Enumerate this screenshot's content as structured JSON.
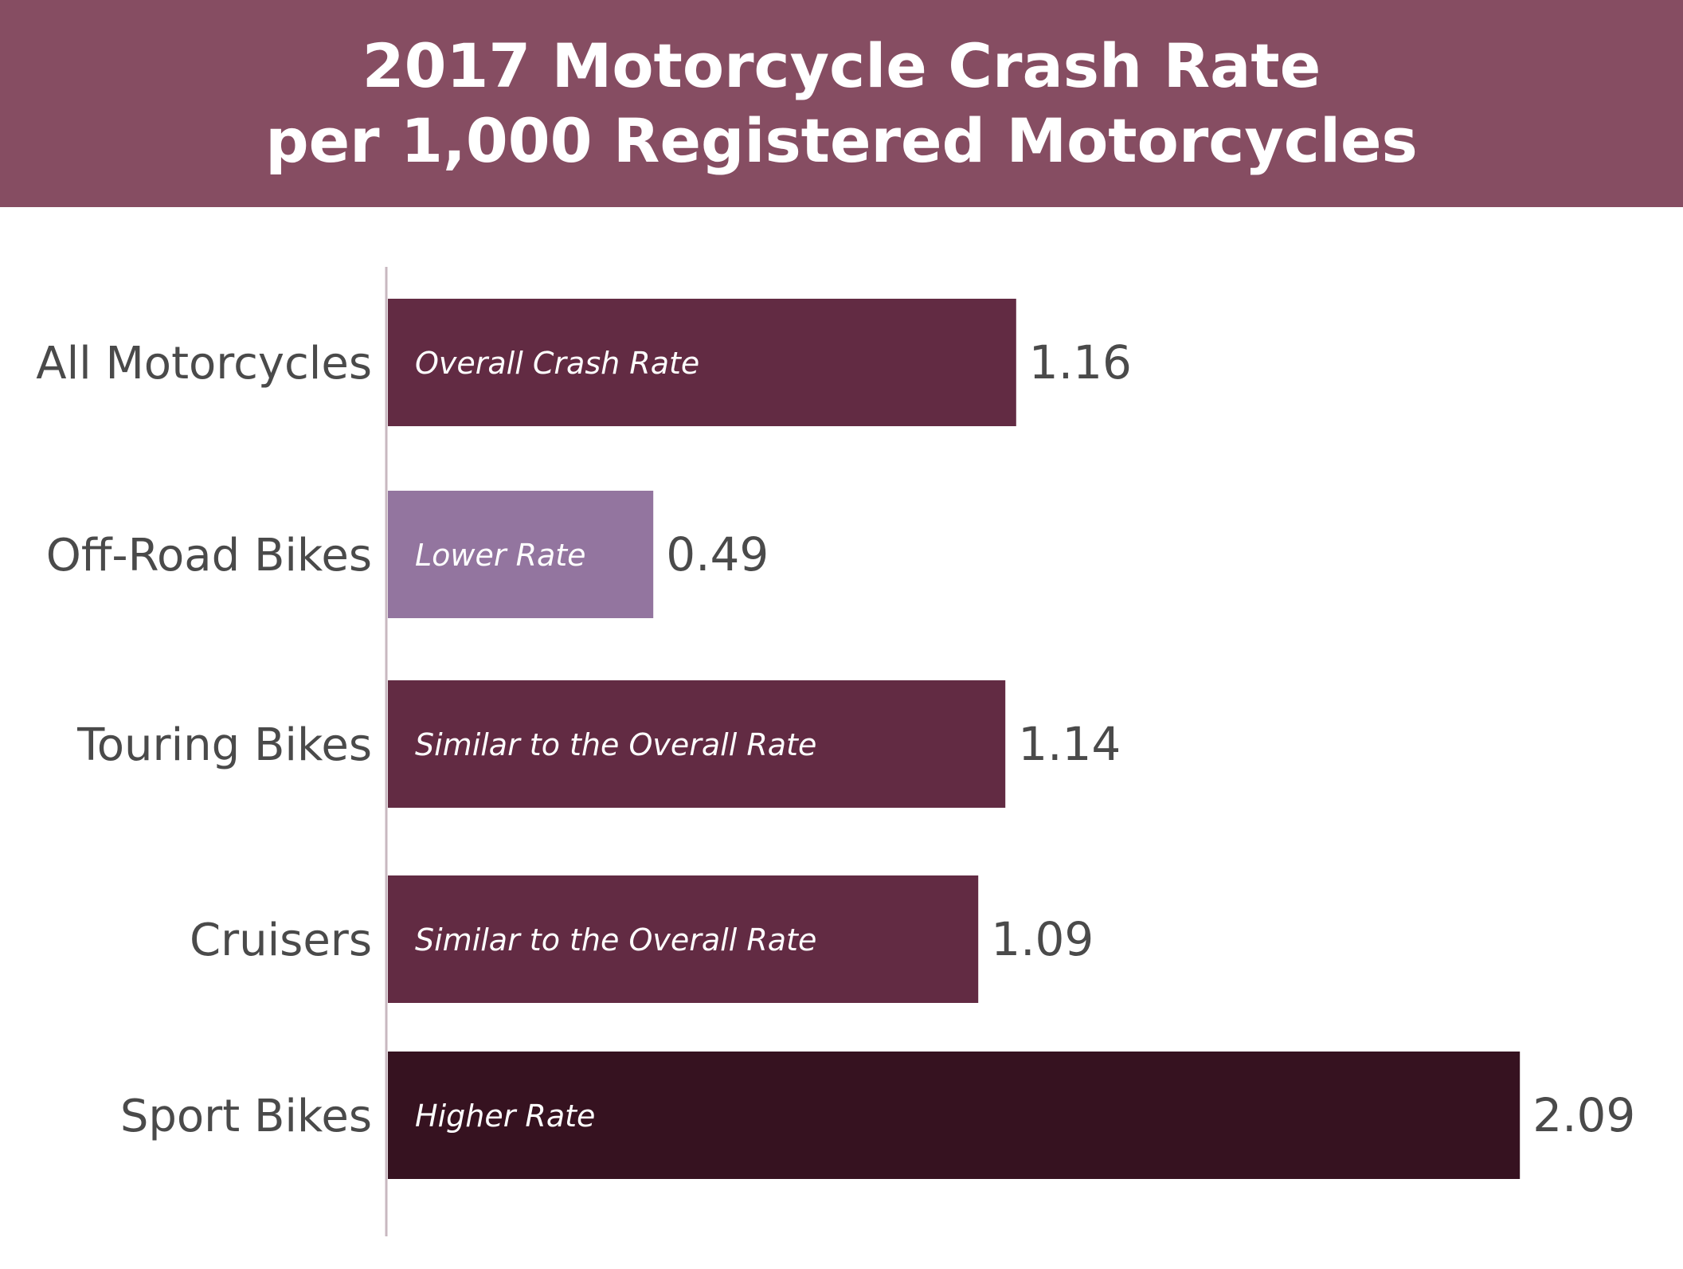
{
  "chart_data": {
    "type": "bar",
    "orientation": "horizontal",
    "title": "2017 Motorcycle Crash Rate",
    "subtitle": "per 1,000 Registered Motorcycles",
    "categories": [
      "All Motorcycles",
      "Off-Road Bikes",
      "Touring Bikes",
      "Cruisers",
      "Sport Bikes"
    ],
    "values": [
      1.16,
      0.49,
      1.14,
      1.09,
      2.09
    ],
    "value_labels": [
      "1.16",
      "0.49",
      "1.14",
      "1.09",
      "2.09"
    ],
    "bar_annotations": [
      "Overall Crash Rate",
      "Lower Rate",
      "Similar to the Overall Rate",
      "Similar to the Overall Rate",
      "Higher Rate"
    ],
    "bar_colors": [
      "#622b43",
      "#93759f",
      "#622b43",
      "#622b43",
      "#361220"
    ],
    "xlim": [
      0,
      2.4
    ],
    "grid": false,
    "legend": "none"
  },
  "colors": {
    "banner": "#864d62",
    "axis": "#c8b8c0"
  }
}
